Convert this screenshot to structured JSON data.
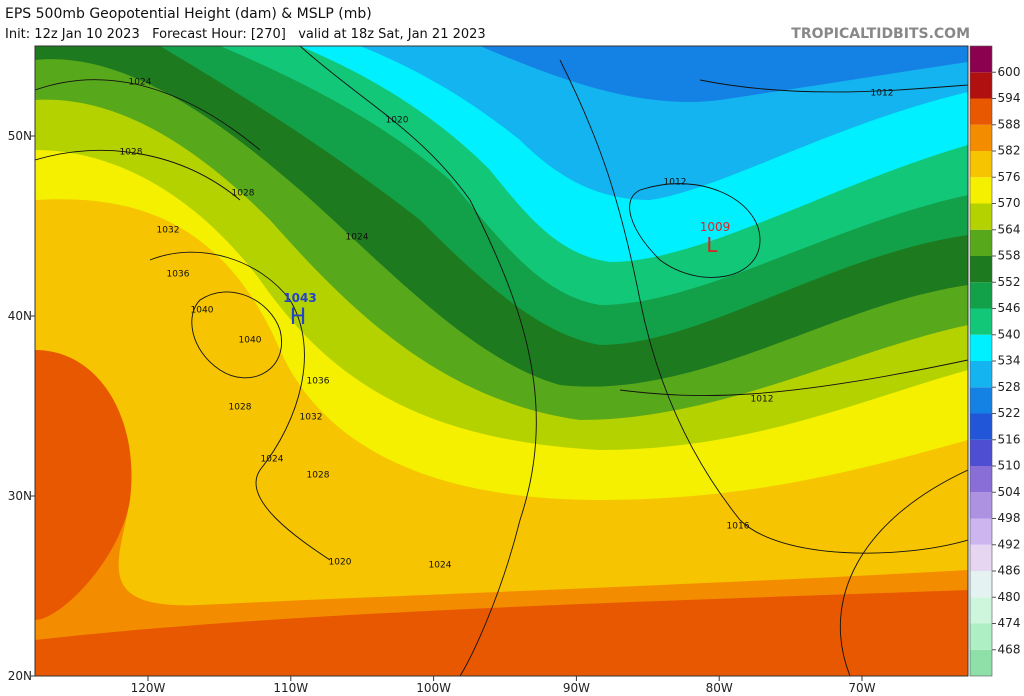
{
  "header": {
    "title": "EPS 500mb Geopotential Height (dam) & MSLP (mb)",
    "subtitle": "Init: 12z Jan 10 2023   Forecast Hour: [270]   valid at 18z Sat, Jan 21 2023",
    "source": "TROPICALTIDBITS.COM"
  },
  "map": {
    "lat_labels": [
      "50N",
      "40N",
      "30N",
      "20N"
    ],
    "lon_labels": [
      "120W",
      "110W",
      "100W",
      "90W",
      "80W",
      "70W"
    ],
    "contour_labels": [
      "1024",
      "1028",
      "1020",
      "1012",
      "1012",
      "1032",
      "1036",
      "1028",
      "1024",
      "1040",
      "1040",
      "1036",
      "1032",
      "1028",
      "1024",
      "1028",
      "1020",
      "1024",
      "1012",
      "1016"
    ],
    "centers": [
      {
        "pressure": "1043",
        "symbol": "H"
      },
      {
        "pressure": "1009",
        "symbol": "L"
      }
    ]
  },
  "colorbar": {
    "levels": [
      468,
      474,
      480,
      486,
      492,
      498,
      504,
      510,
      516,
      522,
      528,
      534,
      540,
      546,
      552,
      558,
      564,
      570,
      576,
      582,
      588,
      594,
      600
    ],
    "colors": [
      "#8fe0a8",
      "#aef0c4",
      "#cdf6dc",
      "#e4f2f2",
      "#e6d6f2",
      "#cdb6ef",
      "#ad92e2",
      "#8a6ed8",
      "#4e4ed2",
      "#2256d8",
      "#1482e4",
      "#14b4f0",
      "#00f0ff",
      "#12c878",
      "#12a048",
      "#1e7a1e",
      "#58a81c",
      "#b4d200",
      "#f4f000",
      "#f6c400",
      "#f48c00",
      "#e85800",
      "#b01010",
      "#8c0050"
    ]
  }
}
